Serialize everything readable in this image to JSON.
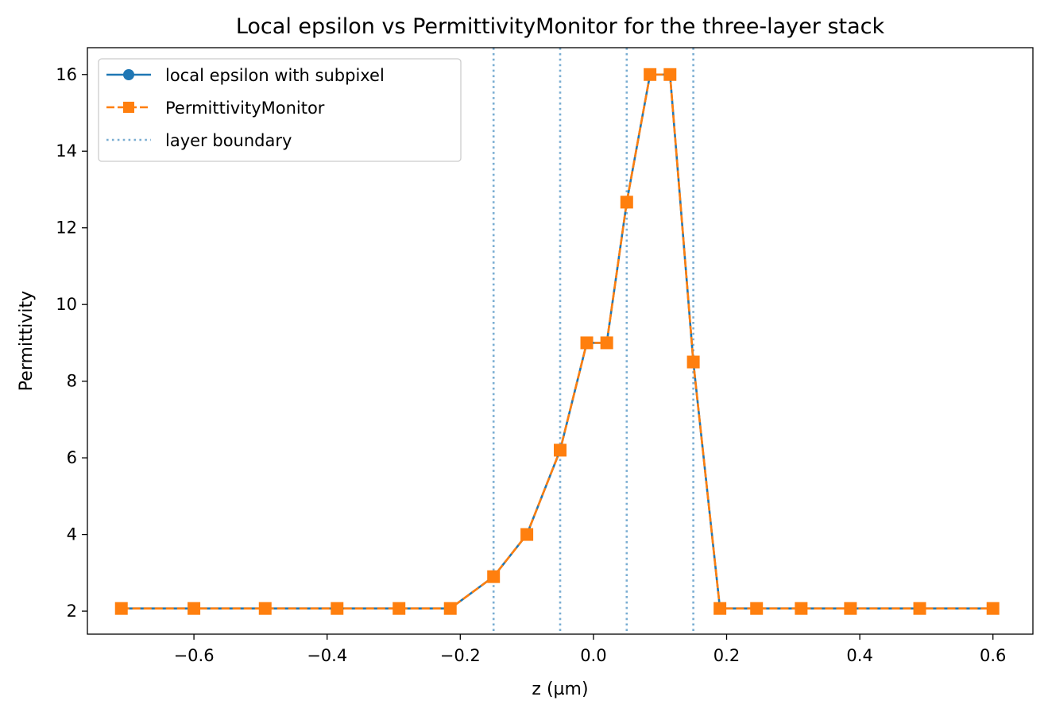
{
  "chart_data": {
    "type": "line",
    "title": "Local epsilon vs PermittivityMonitor for the three-layer stack",
    "xlabel": "z (µm)",
    "ylabel": "Permittivity",
    "xlim": [
      -0.76,
      0.66
    ],
    "ylim": [
      1.4,
      16.7
    ],
    "xticks": [
      -0.6,
      -0.4,
      -0.2,
      0.0,
      0.2,
      0.4,
      0.6
    ],
    "xtick_labels": [
      "−0.6",
      "−0.4",
      "−0.2",
      "0.0",
      "0.2",
      "0.4",
      "0.6"
    ],
    "yticks": [
      2,
      4,
      6,
      8,
      10,
      12,
      14,
      16
    ],
    "ytick_labels": [
      "2",
      "4",
      "6",
      "8",
      "10",
      "12",
      "14",
      "16"
    ],
    "grid": false,
    "legend_position": "top-left",
    "series": [
      {
        "name": "local epsilon with subpixel",
        "color": "#1f77b4",
        "linestyle": "solid",
        "marker": "circle",
        "x": [
          -0.709,
          -0.6,
          -0.493,
          -0.385,
          -0.292,
          -0.215,
          -0.15,
          -0.1,
          -0.05,
          -0.01,
          0.02,
          0.05,
          0.085,
          0.115,
          0.15,
          0.19,
          0.245,
          0.312,
          0.386,
          0.49,
          0.6
        ],
        "y": [
          2.07,
          2.07,
          2.07,
          2.07,
          2.07,
          2.07,
          2.9,
          4.0,
          6.2,
          9.0,
          9.0,
          12.67,
          16.0,
          16.0,
          8.5,
          2.07,
          2.07,
          2.07,
          2.07,
          2.07,
          2.07
        ]
      },
      {
        "name": "PermittivityMonitor",
        "color": "#ff7f0e",
        "linestyle": "dashed",
        "marker": "square",
        "x": [
          -0.709,
          -0.6,
          -0.493,
          -0.385,
          -0.292,
          -0.215,
          -0.15,
          -0.1,
          -0.05,
          -0.01,
          0.02,
          0.05,
          0.085,
          0.115,
          0.15,
          0.19,
          0.245,
          0.312,
          0.386,
          0.49,
          0.6
        ],
        "y": [
          2.07,
          2.07,
          2.07,
          2.07,
          2.07,
          2.07,
          2.9,
          4.0,
          6.2,
          9.0,
          9.0,
          12.67,
          16.0,
          16.0,
          8.5,
          2.07,
          2.07,
          2.07,
          2.07,
          2.07,
          2.07
        ]
      }
    ],
    "boundaries": {
      "name": "layer boundary",
      "color": "#1f77b4",
      "linestyle": "dotted",
      "x": [
        -0.15,
        -0.05,
        0.05,
        0.15
      ]
    }
  }
}
